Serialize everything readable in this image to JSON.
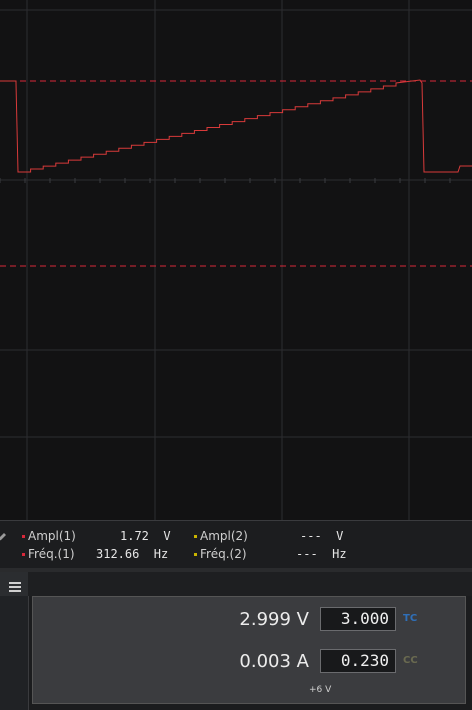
{
  "colors": {
    "ch1": "#d8283a",
    "ch2": "#c9b400",
    "trace": "#d83a3a",
    "grid": "#2c2d30",
    "mode_tc": "#2f6fb8",
    "mode_cc": "#6a6a50"
  },
  "measurements": {
    "ch1_ampl_label": "Ampl(1)",
    "ch1_ampl_value": "1.72  V",
    "ch1_freq_label": "Fréq.(1)",
    "ch1_freq_value": "312.66  Hz",
    "ch2_ampl_label": "Ampl(2)",
    "ch2_ampl_value": "---  V",
    "ch2_freq_label": "Fréq.(2)",
    "ch2_freq_value": "---  Hz"
  },
  "power_supply": {
    "voltage_reading": "2.999 V",
    "voltage_setpoint": "3.000",
    "voltage_mode": "TC",
    "current_reading": "0.003 A",
    "current_setpoint": "0.230",
    "current_mode": "CC",
    "rail_label": "+6 V"
  },
  "icons": {
    "edit": "pencil-icon",
    "menu": "hamburger-menu-icon",
    "panel": "panel-menu-icon"
  }
}
